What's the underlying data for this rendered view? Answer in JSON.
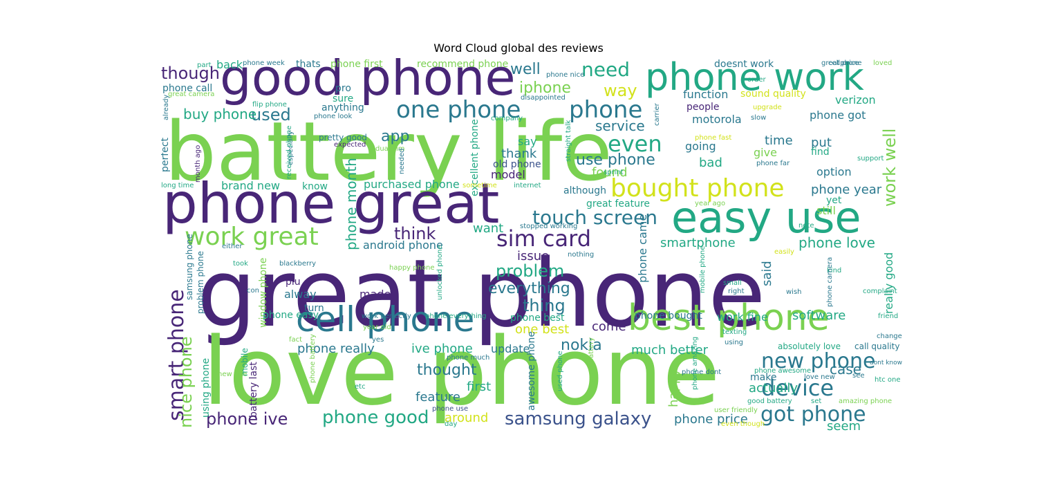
{
  "title": "Word Cloud global des reviews",
  "palette": {
    "purple": "#482677",
    "teal": "#2a788e",
    "green_teal": "#22a884",
    "green": "#7ad151",
    "yellow": "#d2e21b",
    "blue": "#3b528b"
  },
  "words": [
    "battery life",
    "great phone",
    "love phone",
    "phone great",
    "good phone",
    "phone work",
    "easy use",
    "cell phone",
    "best phone",
    "one phone",
    "phone",
    "bought phone",
    "touch screen",
    "sim card",
    "work great",
    "smart phone",
    "new phone",
    "got phone",
    "device",
    "samsung galaxy",
    "phone good",
    "phone ive",
    "nice phone",
    "phone month",
    "work well",
    "even",
    "need",
    "way",
    "well",
    "iphone",
    "though",
    "used",
    "buy phone",
    "phone call",
    "back",
    "thats",
    "phone first",
    "recommend phone",
    "doesnt work",
    "great price",
    "loved",
    "pro",
    "sure",
    "anything",
    "function",
    "sound quality",
    "verizon",
    "service",
    "motorola",
    "people",
    "phone got",
    "app",
    "say",
    "thank",
    "use phone",
    "going",
    "time",
    "put",
    "give",
    "find",
    "old phone",
    "bad",
    "found",
    "model",
    "option",
    "phone year",
    "yet",
    "still",
    "although",
    "great feature",
    "brand new",
    "purchased phone",
    "think",
    "want",
    "android phone",
    "smartphone",
    "phone love",
    "issue",
    "problem",
    "everything",
    "thing",
    "made",
    "alway",
    "plu",
    "turn",
    "phone really",
    "ive phone",
    "update",
    "thought",
    "first",
    "feature",
    "around",
    "nokia",
    "much better",
    "one best",
    "come",
    "phone best",
    "phone bought",
    "work fine",
    "software",
    "happy",
    "case",
    "actually",
    "make",
    "phone price",
    "seem",
    "really good",
    "said",
    "phone came",
    "excellent phone",
    "awesome phone",
    "window phone",
    "samsung phone",
    "problem phone",
    "using phone",
    "battery last",
    "perfect",
    "know",
    "phone easy",
    "pretty good",
    "flip phone",
    "phone look",
    "phone week",
    "part",
    "great camera",
    "month ago",
    "long time",
    "already",
    "especially",
    "received phone",
    "expected",
    "dual sim",
    "needed",
    "sometime",
    "internet",
    "sprint",
    "phone nice",
    "disappointed",
    "straight talk",
    "carrier",
    "upgrade",
    "slow",
    "order",
    "company",
    "phone fast",
    "phone far",
    "support",
    "stopped working",
    "either",
    "took",
    "con",
    "blackberry",
    "happy phone",
    "unlocked phone",
    "nothing",
    "mobile phone",
    "kind",
    "small",
    "right",
    "wish",
    "note",
    "easily",
    "complaint",
    "phone camera",
    "work perfectly",
    "phone everything",
    "year old",
    "yes",
    "fact",
    "mobile",
    "new one",
    "phone battery",
    "etc",
    "phone use",
    "phone much",
    "phone dont",
    "used phone",
    "great battery",
    "even though",
    "user friendly",
    "phone amazing",
    "phone awesome",
    "love new",
    "dont know",
    "see",
    "htc one",
    "good battery",
    "set",
    "amazing phone",
    "absolutely love",
    "call quality",
    "change",
    "texting",
    "using",
    "friend",
    "year ago",
    "cellphone",
    "day"
  ]
}
